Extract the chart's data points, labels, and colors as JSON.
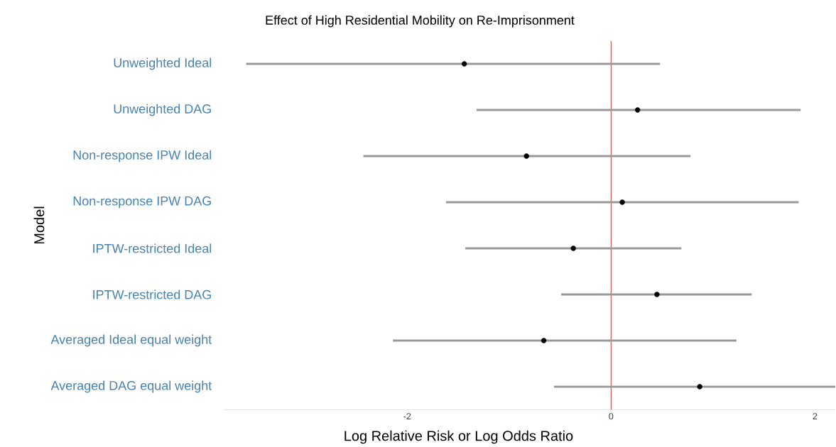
{
  "chart_data": {
    "type": "scatter",
    "orientation": "horizontal",
    "title": "Effect of High Residential Mobility on Re-Imprisonment",
    "xlabel": "Log Relative Risk  or  Log Odds Ratio",
    "ylabel": "Model",
    "categories": [
      "Unweighted Ideal",
      "Unweighted DAG",
      "Non-response IPW Ideal",
      "Non-response IPW DAG",
      "IPTW-restricted Ideal",
      "IPTW-restricted DAG",
      "Averaged Ideal equal weight",
      "Averaged DAG equal weight"
    ],
    "values": [
      -1.44,
      0.26,
      -0.83,
      0.11,
      -0.37,
      0.45,
      -0.66,
      0.87
    ],
    "errors": [
      [
        -3.58,
        0.48
      ],
      [
        -1.32,
        1.86
      ],
      [
        -2.43,
        0.78
      ],
      [
        -1.62,
        1.84
      ],
      [
        -1.43,
        0.69
      ],
      [
        -0.49,
        1.38
      ],
      [
        -2.14,
        1.23
      ],
      [
        -0.56,
        2.2
      ]
    ],
    "color": "#000000",
    "marker": "circle",
    "xlim": [
      -3.8,
      2.2
    ],
    "xticks": [
      -2,
      0,
      2
    ],
    "ref_lines": [
      {
        "axis": "x",
        "value": 0,
        "color": "#f0453a"
      }
    ],
    "grid": false
  }
}
